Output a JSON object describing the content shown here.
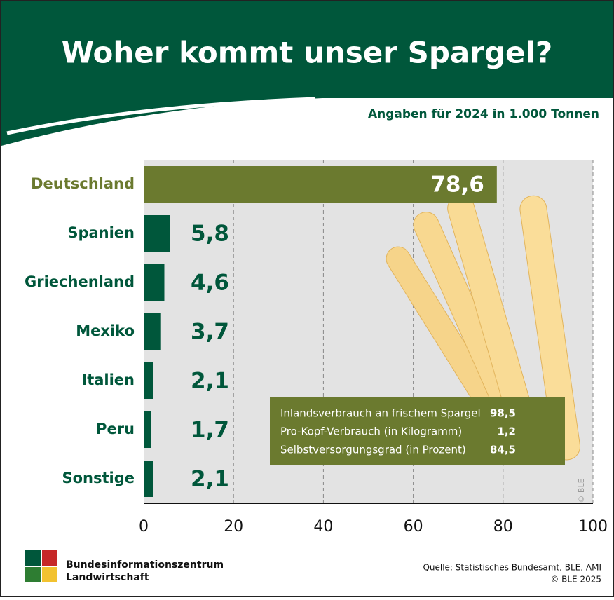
{
  "chart_data": {
    "type": "hbar",
    "title": "Woher kommt unser Spargel?",
    "subtitle": "Angaben für 2024 in 1.000 Tonnen",
    "categories": [
      "Deutschland",
      "Spanien",
      "Griechenland",
      "Mexiko",
      "Italien",
      "Peru",
      "Sonstige"
    ],
    "values": [
      78.6,
      5.8,
      4.6,
      3.7,
      2.1,
      1.7,
      2.1
    ],
    "value_labels": [
      "78,6",
      "5,8",
      "4,6",
      "3,7",
      "2,1",
      "1,7",
      "2,1"
    ],
    "colors": [
      "#6b7a2f",
      "#00573b",
      "#00573b",
      "#00573b",
      "#00573b",
      "#00573b",
      "#00573b"
    ],
    "xlim": [
      0,
      100
    ],
    "xticks": [
      0,
      20,
      40,
      60,
      80,
      100
    ],
    "grid": true,
    "info_box": [
      {
        "label": "Inlandsverbrauch an frischem Spargel",
        "value": "98,5"
      },
      {
        "label": "Pro-Kopf-Verbrauch (in Kilogramm)",
        "value": "1,2"
      },
      {
        "label": "Selbstversorgungsgrad (in Prozent)",
        "value": "84,5"
      }
    ],
    "watermark": "© BLE",
    "logo_text": [
      "Bundesinformationszentrum",
      "Landwirtschaft"
    ],
    "source": "Quelle: Statistisches Bundesamt, BLE, AMI",
    "copyright": "© BLE 2025"
  }
}
